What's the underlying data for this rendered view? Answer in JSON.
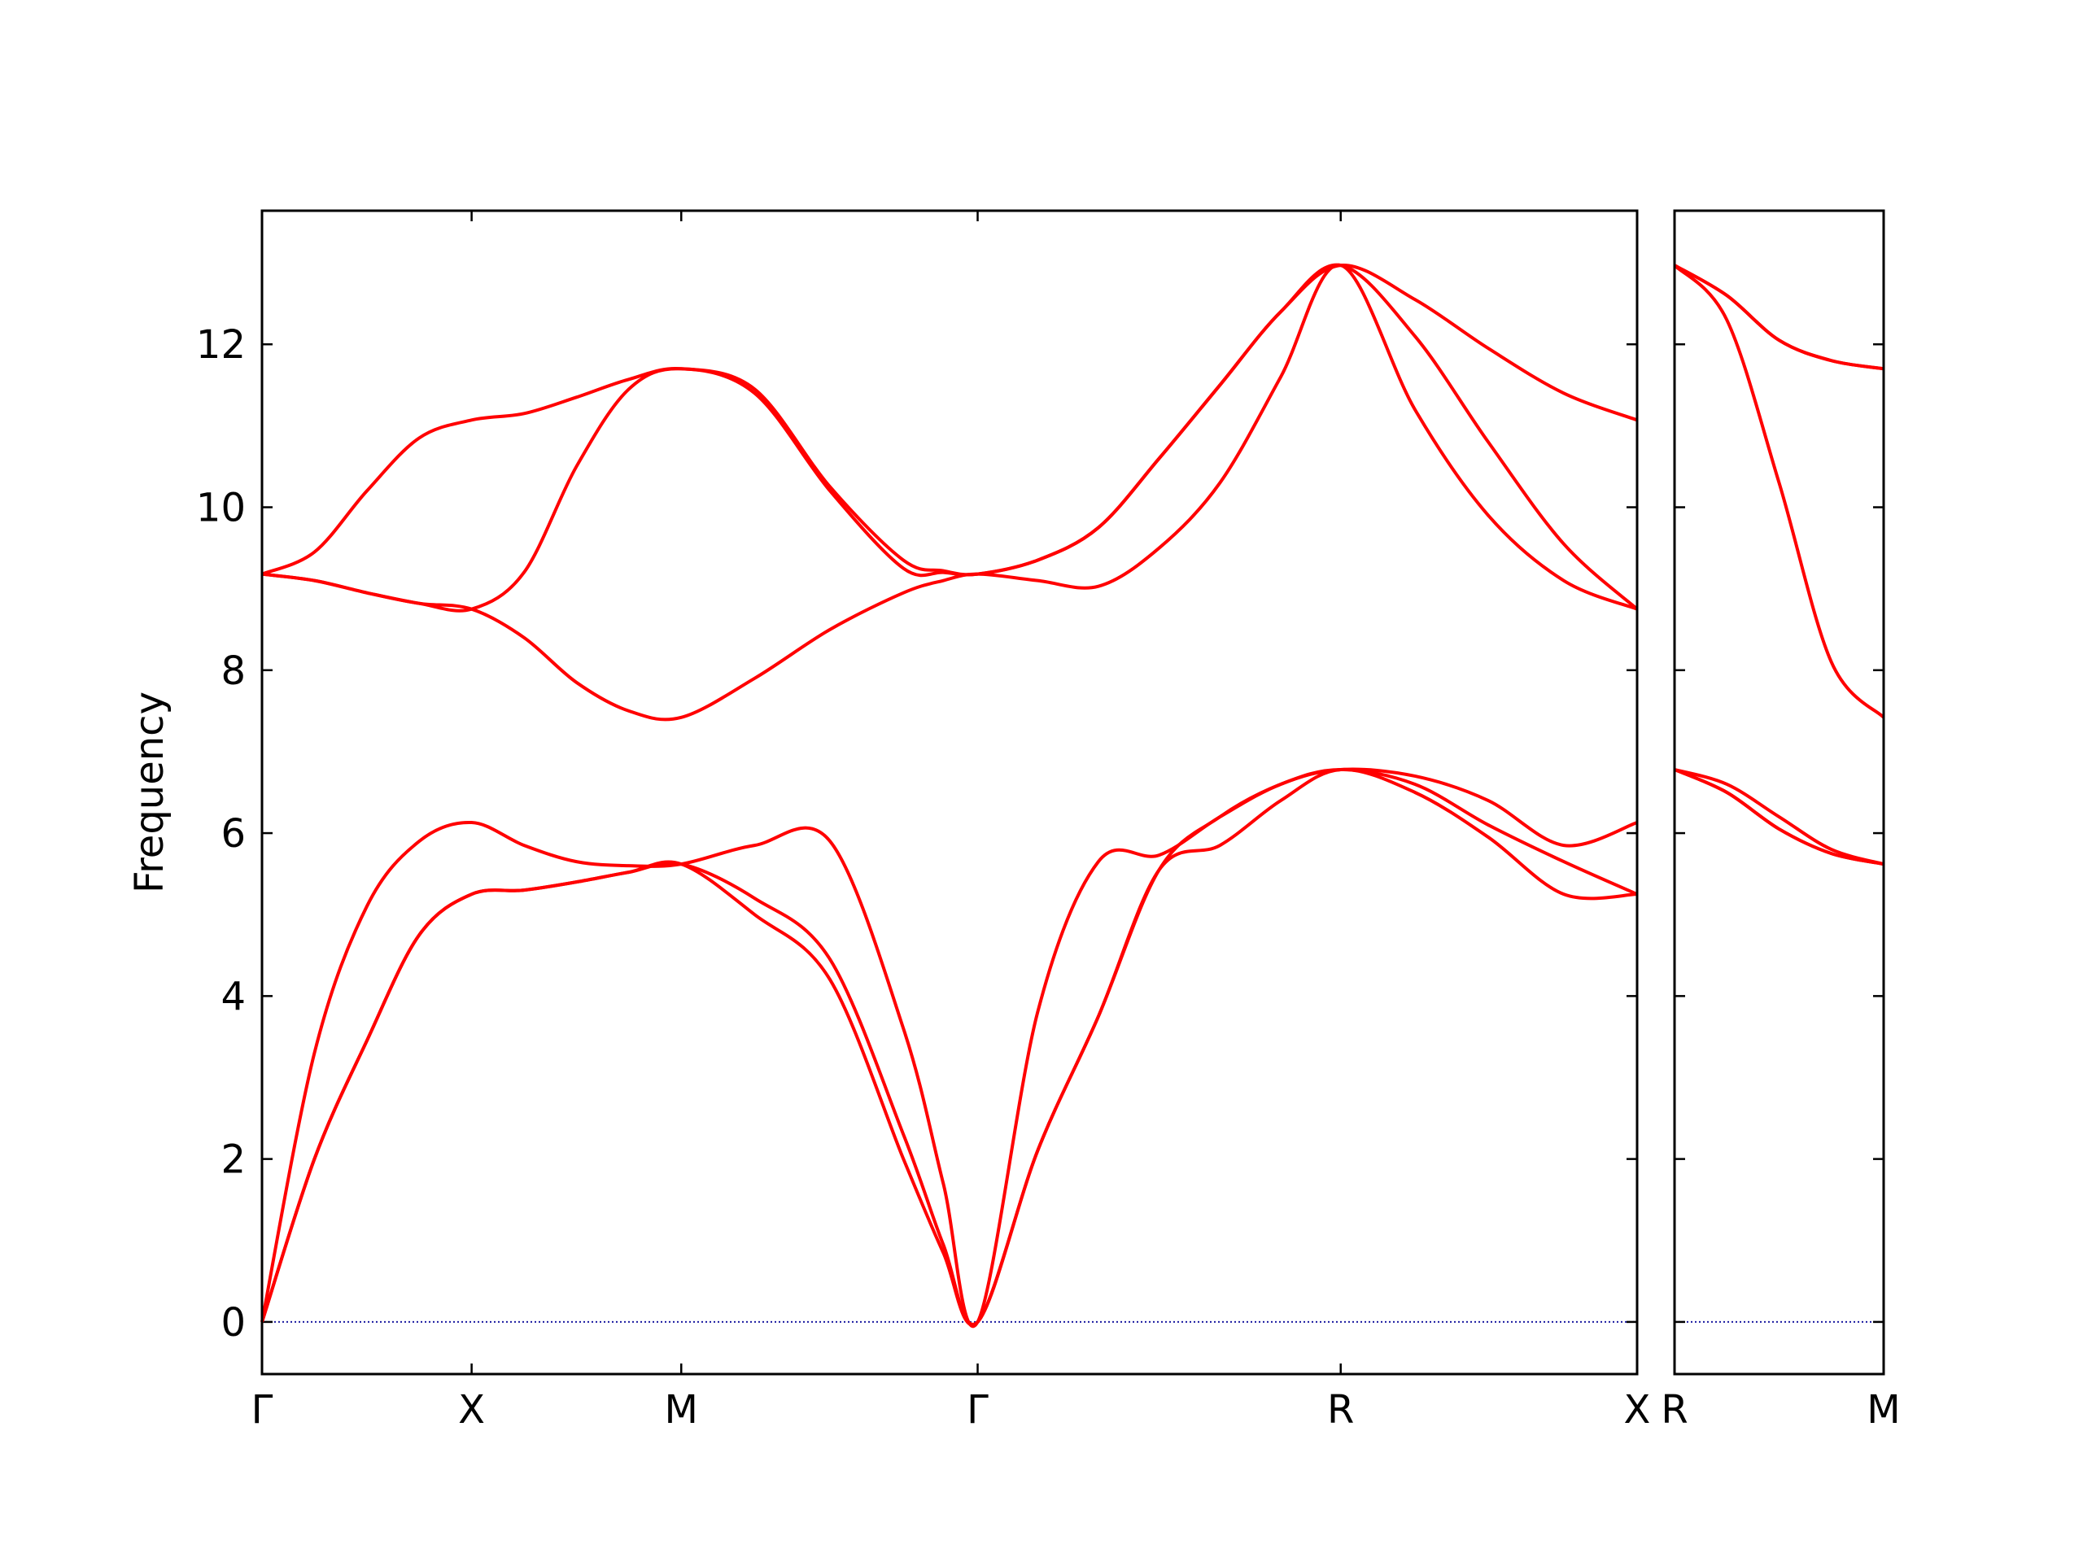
{
  "chart_data": [
    {
      "type": "line",
      "ylabel": "Frequency",
      "x": [
        0,
        0.25,
        0.5,
        0.75,
        1,
        1.25,
        1.5,
        1.75,
        2,
        2.35,
        2.71,
        3.06,
        3.25,
        3.414,
        3.7,
        3.99,
        4.28,
        4.57,
        4.86,
        5.146,
        5.5,
        5.85,
        6.21,
        6.56
      ],
      "xlim": [
        0,
        6.56
      ],
      "xticks": [
        {
          "value": 0,
          "label": "Γ"
        },
        {
          "value": 1,
          "label": "X"
        },
        {
          "value": 2,
          "label": "M"
        },
        {
          "value": 3.414,
          "label": "Γ"
        },
        {
          "value": 5.146,
          "label": "R"
        },
        {
          "value": 6.56,
          "label": "X"
        }
      ],
      "ylim": [
        -0.64,
        13.64
      ],
      "yticks": [
        0,
        2,
        4,
        6,
        8,
        10,
        12
      ],
      "hline": 0,
      "hline_color": "#1a1aa0",
      "series": [
        {
          "color": "#ff0000",
          "values": [
            0,
            2.0,
            3.45,
            4.75,
            5.25,
            5.3,
            5.4,
            5.52,
            5.62,
            5.0,
            4.2,
            2.0,
            0.85,
            0,
            2.1,
            3.75,
            5.55,
            5.85,
            6.4,
            6.78,
            6.5,
            5.95,
            5.25,
            5.25
          ]
        },
        {
          "color": "#ff0000",
          "values": [
            0,
            2.0,
            3.45,
            4.75,
            5.25,
            5.3,
            5.4,
            5.52,
            5.62,
            5.2,
            4.45,
            2.3,
            0.95,
            0,
            2.1,
            3.75,
            5.55,
            6.2,
            6.6,
            6.78,
            6.6,
            6.1,
            5.65,
            5.25
          ]
        },
        {
          "color": "#ff0000",
          "values": [
            0,
            3.3,
            5.1,
            5.9,
            6.13,
            5.85,
            5.65,
            5.6,
            5.62,
            5.85,
            5.9,
            3.6,
            1.7,
            0,
            3.8,
            5.65,
            5.73,
            6.2,
            6.6,
            6.78,
            6.7,
            6.4,
            5.85,
            6.13
          ]
        },
        {
          "color": "#ff0000",
          "values": [
            9.18,
            9.1,
            8.95,
            8.82,
            8.75,
            8.4,
            7.85,
            7.5,
            7.42,
            7.9,
            8.5,
            8.95,
            9.1,
            9.18,
            9.1,
            9.03,
            9.5,
            10.3,
            11.6,
            12.97,
            11.2,
            9.9,
            9.1,
            8.75
          ]
        },
        {
          "color": "#ff0000",
          "values": [
            9.18,
            9.1,
            8.95,
            8.82,
            8.75,
            9.2,
            10.5,
            11.45,
            11.7,
            11.4,
            10.2,
            9.25,
            9.2,
            9.18,
            9.35,
            9.75,
            10.6,
            11.5,
            12.4,
            12.97,
            12.1,
            10.8,
            9.55,
            8.75
          ]
        },
        {
          "color": "#ff0000",
          "values": [
            9.18,
            9.45,
            10.2,
            10.85,
            11.07,
            11.15,
            11.35,
            11.57,
            11.7,
            11.45,
            10.25,
            9.35,
            9.22,
            9.18,
            9.35,
            9.75,
            10.6,
            11.5,
            12.4,
            12.97,
            12.55,
            11.95,
            11.4,
            11.07
          ]
        }
      ]
    },
    {
      "type": "line",
      "x": [
        0,
        0.25,
        0.5,
        0.75,
        1
      ],
      "xlim": [
        0,
        1
      ],
      "xticks": [
        {
          "value": 0,
          "label": "R"
        },
        {
          "value": 1,
          "label": "M"
        }
      ],
      "ylim": [
        -0.64,
        13.64
      ],
      "hline": 0,
      "hline_color": "#1a1aa0",
      "series": [
        {
          "color": "#ff0000",
          "values": [
            6.78,
            6.5,
            6.05,
            5.75,
            5.62
          ]
        },
        {
          "color": "#ff0000",
          "values": [
            6.78,
            6.5,
            6.05,
            5.75,
            5.62
          ]
        },
        {
          "color": "#ff0000",
          "values": [
            6.78,
            6.6,
            6.2,
            5.8,
            5.62
          ]
        },
        {
          "color": "#ff0000",
          "values": [
            12.97,
            12.3,
            10.3,
            8.1,
            7.42
          ]
        },
        {
          "color": "#ff0000",
          "values": [
            12.97,
            12.6,
            12.05,
            11.8,
            11.7
          ]
        },
        {
          "color": "#ff0000",
          "values": [
            12.97,
            12.6,
            12.05,
            11.8,
            11.7
          ]
        }
      ]
    }
  ]
}
